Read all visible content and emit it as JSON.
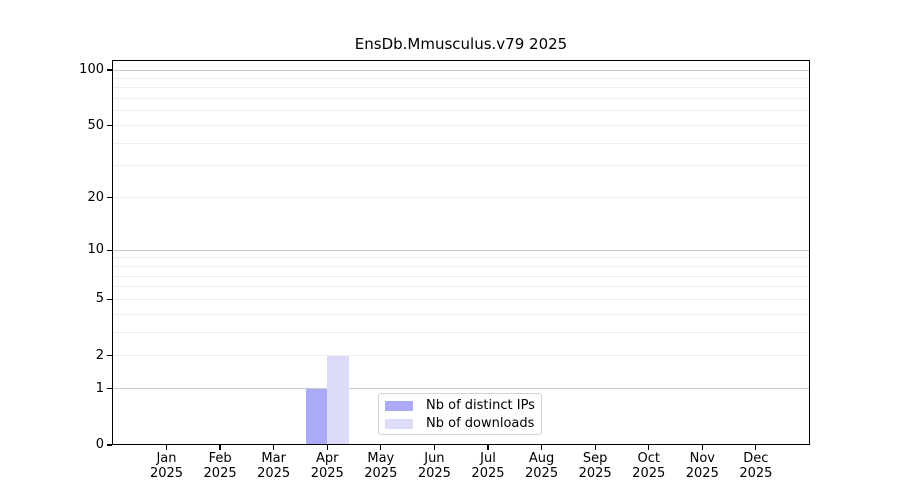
{
  "chart_data": {
    "type": "bar",
    "title": "EnsDb.Mmusculus.v79 2025",
    "x": [
      {
        "month": "Jan",
        "year": "2025"
      },
      {
        "month": "Feb",
        "year": "2025"
      },
      {
        "month": "Mar",
        "year": "2025"
      },
      {
        "month": "Apr",
        "year": "2025"
      },
      {
        "month": "May",
        "year": "2025"
      },
      {
        "month": "Jun",
        "year": "2025"
      },
      {
        "month": "Jul",
        "year": "2025"
      },
      {
        "month": "Aug",
        "year": "2025"
      },
      {
        "month": "Sep",
        "year": "2025"
      },
      {
        "month": "Oct",
        "year": "2025"
      },
      {
        "month": "Nov",
        "year": "2025"
      },
      {
        "month": "Dec",
        "year": "2025"
      }
    ],
    "series": [
      {
        "name": "Nb of distinct IPs",
        "color": "#aaaaf7",
        "values": [
          0,
          0,
          0,
          1,
          0,
          0,
          0,
          0,
          0,
          0,
          0,
          0
        ]
      },
      {
        "name": "Nb of downloads",
        "color": "#dcdcf8",
        "values": [
          0,
          0,
          0,
          2,
          0,
          0,
          0,
          0,
          0,
          0,
          0,
          0
        ]
      }
    ],
    "y_axis": {
      "scale": "log1p",
      "lim": [
        0,
        114
      ],
      "ticks": [
        100,
        50,
        20,
        10,
        5,
        2,
        1,
        0
      ],
      "gridlines_major": [
        1,
        10,
        100
      ],
      "gridlines_minor": [
        2,
        3,
        4,
        5,
        6,
        7,
        8,
        9,
        20,
        30,
        40,
        50,
        60,
        70,
        80,
        90
      ]
    },
    "legend": {
      "position": "lower center",
      "entries": [
        "Nb of distinct IPs",
        "Nb of downloads"
      ]
    },
    "colors": {
      "axis": "#000000",
      "grid_major": "#c8c8c8",
      "grid_minor": "#ededed",
      "background": "#ffffff",
      "legend_border": "#d3d3d3"
    }
  }
}
